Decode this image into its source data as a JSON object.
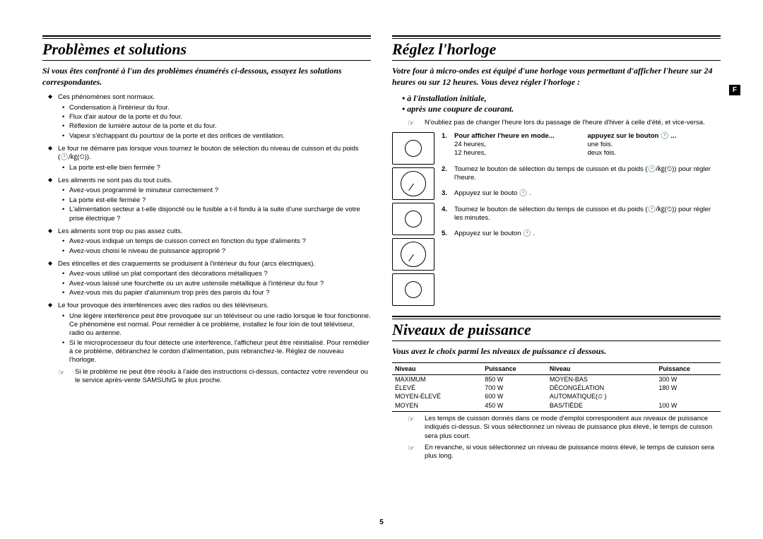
{
  "page_number": "5",
  "side_badge": "F",
  "left": {
    "title": "Problèmes et solutions",
    "intro": "Si vous êtes confronté à l'un des problèmes énumérés ci-dessous, essayez les solutions correspondantes.",
    "groups": [
      {
        "lead": "Ces phénomènes sont normaux.",
        "items": [
          "Condensation à l'intérieur du four.",
          "Flux d'air autour de la porte et du four.",
          "Réflexion de lumière autour de la porte et du four.",
          "Vapeur s'échappant du pourtour de la porte et des orifices de ventilation."
        ]
      },
      {
        "lead": "Le four ne démarre pas lorsque vous tournez le bouton de sélection du niveau de cuisson et du poids (🕐/㎏(⏲)).",
        "items": [
          "La porte est-elle bien fermée ?"
        ]
      },
      {
        "lead": "Les aliments ne sont pas du tout cuits.",
        "items": [
          "Avez-vous programmé le minuteur correctement ?",
          "La porte est-elle fermée ?",
          "L'alimentation secteur a t-elle disjoncté ou le fusible a t-il fondu à la suite d'une surcharge de votre prise électrique ?"
        ]
      },
      {
        "lead": "Les aliments sont trop ou pas assez cuits.",
        "items": [
          "Avez-vous indiqué un temps de cuisson correct en fonction du type d'aliments ?",
          "Avez-vous choisi le niveau de puissance approprié ?"
        ]
      },
      {
        "lead": "Des étincelles et des craquements se produisent à l'intérieur du four (arcs électriques).",
        "items": [
          "Avez-vous utilisé un plat comportant des décorations métalliques ?",
          "Avez-vous laissé une fourchette ou un autre ustensile métallique à l'intérieur du four ?",
          "Avez-vous mis du papier d'aluminium trop près des parois du four ?"
        ]
      },
      {
        "lead": "Le four provoque des interférences avec des radios ou des téléviseurs.",
        "items": [
          "Une légère interférence peut être provoquée sur un téléviseur ou une radio lorsque le four fonctionne. Ce phénomène est normal. Pour remédier à ce problème, installez le four loin de tout téléviseur, radio ou antenne.",
          "Si le microprocesseur du four détecte une interférence, l'afficheur peut être réinitialisé. Pour remédier à ce problème, débranchez le cordon d'alimentation, puis rebranchez-le. Réglez de nouveau l'horloge."
        ]
      }
    ],
    "note": "Si le problème ne peut être résolu à l'aide des instructions ci-dessus, contactez votre revendeur ou le service après-vente SAMSUNG le plus proche."
  },
  "right": {
    "clock": {
      "title": "Réglez l'horloge",
      "intro": "Votre four à micro-ondes est équipé d'une horloge vous permettant d'afficher l'heure sur 24 heures ou sur 12 heures. Vous devez régler l'horloge :",
      "bullets": [
        "à l'installation initiale,",
        "après une coupure de courant."
      ],
      "note": "N'oubliez pas de changer l'heure lors du passage de l'heure d'hiver à celle d'été, et vice-versa.",
      "step1_head_a": "Pour afficher l'heure en mode...",
      "step1_head_b": "appuyez sur le bouton 🕐 ...",
      "step1_r1a": "24 heures,",
      "step1_r1b": "une fois.",
      "step1_r2a": "12 heures,",
      "step1_r2b": "deux fois.",
      "step2": "Tournez le bouton de sélection du temps de cuisson et du poids (🕐/㎏(⏲)) pour régler l'heure.",
      "step3": "Appuyez sur le bouto 🕐 .",
      "step4": "Tournez le bouton de sélection du temps de cuisson et du poids (🕐/㎏(⏲)) pour régler les minutes.",
      "step5": "Appuyez sur le bouton 🕐 ."
    },
    "power": {
      "title": "Niveaux de puissance",
      "intro": "Vous avez le choix parmi les niveaux de puissance ci dessous.",
      "col_level": "Niveau",
      "col_power": "Puissance",
      "rows_left": [
        [
          "MAXIMUM",
          "850 W"
        ],
        [
          "ÉLEVÉ",
          "700 W"
        ],
        [
          "MOYEN-ÉLEVÉ",
          "600 W"
        ],
        [
          "MOYEN",
          "450 W"
        ]
      ],
      "rows_right": [
        [
          "MOYEN-BAS",
          "300 W"
        ],
        [
          "DÉCONGÉLATION",
          "180 W"
        ],
        [
          "AUTOMATIQUE(⏲ )",
          ""
        ],
        [
          "BAS/TIÈDE",
          "100 W"
        ]
      ],
      "note1": "Les temps de cuisson donnés dans ce mode d'emploi correspondent aux niveaux de puissance indiqués ci-dessus. Si vous sélectionnez un niveau de puissance plus élevé, le temps de cuisson sera plus court.",
      "note2": "En revanche, si vous sélectionnez un niveau de puissance moins élevé, le temps de cuisson sera plus long."
    }
  }
}
